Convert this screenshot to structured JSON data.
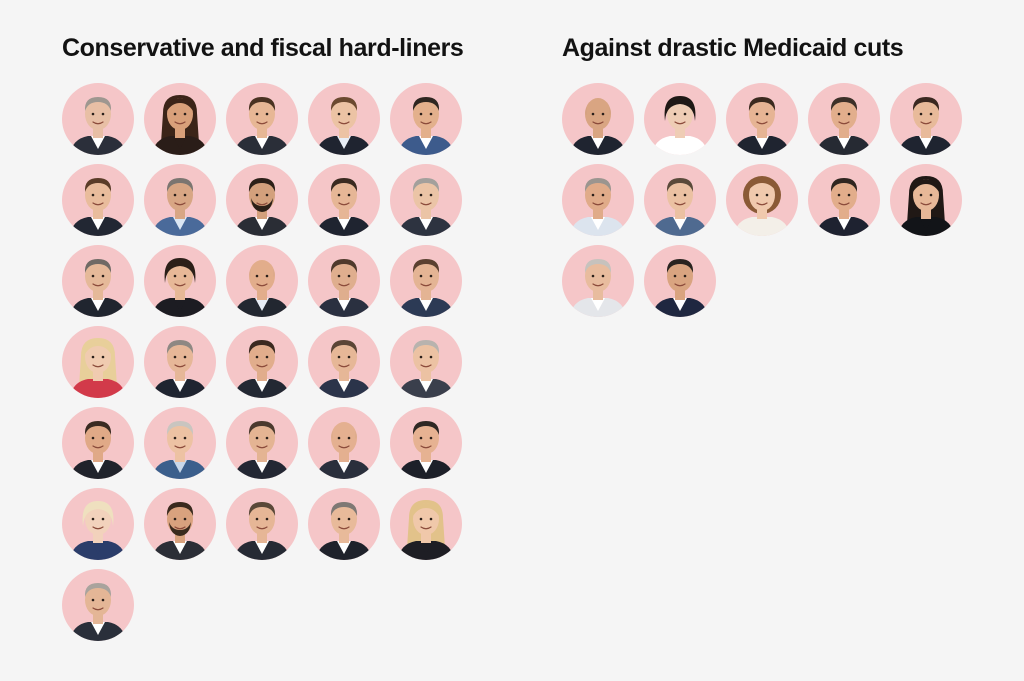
{
  "colors": {
    "background": "#f5f5f5",
    "portrait_circle": "#f5c6c8",
    "title_text": "#121212"
  },
  "groups": [
    {
      "title": "Conservative and fiscal hard-liners",
      "portraits": [
        {
          "skin": "#e8bfa5",
          "hair": "#9e9790",
          "hair_style": "short",
          "suit": "#2b2f3a",
          "shirt": "#ffffff"
        },
        {
          "skin": "#d9a07a",
          "hair": "#3b2418",
          "hair_style": "long",
          "suit": "#2a1d18",
          "shirt": "#2a1d18"
        },
        {
          "skin": "#e7b795",
          "hair": "#4a3322",
          "hair_style": "short",
          "suit": "#2a2e38",
          "shirt": "#ffffff"
        },
        {
          "skin": "#ecc3a4",
          "hair": "#6b4a30",
          "hair_style": "short",
          "suit": "#1f2430",
          "shirt": "#e8eef6"
        },
        {
          "skin": "#e3b08c",
          "hair": "#2e2620",
          "hair_style": "short",
          "suit": "#3d5b8c",
          "shirt": "#ffffff"
        },
        {
          "skin": "#e9bc9c",
          "hair": "#5a3c28",
          "hair_style": "short",
          "suit": "#222733",
          "shirt": "#ffffff"
        },
        {
          "skin": "#d8a684",
          "hair": "#7b7570",
          "hair_style": "short",
          "suit": "#4a6a9a",
          "shirt": "#dbe6f3"
        },
        {
          "skin": "#d3a07c",
          "hair": "#2c2018",
          "hair_style": "beard",
          "suit": "#2a2d35",
          "shirt": "#ffffff"
        },
        {
          "skin": "#e6b696",
          "hair": "#3a2a20",
          "hair_style": "short",
          "suit": "#1f2430",
          "shirt": "#ffffff"
        },
        {
          "skin": "#ebc4a6",
          "hair": "#a3a09c",
          "hair_style": "short",
          "suit": "#2d3340",
          "shirt": "#ffffff"
        },
        {
          "skin": "#e5b999",
          "hair": "#6f6a65",
          "hair_style": "short",
          "suit": "#20252f",
          "shirt": "#ffffff"
        },
        {
          "skin": "#e7b897",
          "hair": "#2b1f18",
          "hair_style": "bob",
          "suit": "#1c1c22",
          "shirt": "#1c1c22"
        },
        {
          "skin": "#e2ad8b",
          "hair": "#d8a88a",
          "hair_style": "bald",
          "suit": "#222730",
          "shirt": "#e8eef6"
        },
        {
          "skin": "#dfae8e",
          "hair": "#4f3a2c",
          "hair_style": "short",
          "suit": "#2a3040",
          "shirt": "#ffffff"
        },
        {
          "skin": "#e4b494",
          "hair": "#5a4030",
          "hair_style": "short",
          "suit": "#2c3a55",
          "shirt": "#ffffff"
        },
        {
          "skin": "#f0cbb0",
          "hair": "#e8cf9a",
          "hair_style": "long",
          "suit": "#d23a4a",
          "shirt": "#d23a4a"
        },
        {
          "skin": "#e6b798",
          "hair": "#8e8883",
          "hair_style": "short",
          "suit": "#1f2430",
          "shirt": "#ffffff"
        },
        {
          "skin": "#e1ad8c",
          "hair": "#3b2a20",
          "hair_style": "short",
          "suit": "#232833",
          "shirt": "#ffffff"
        },
        {
          "skin": "#e6b797",
          "hair": "#5b4536",
          "hair_style": "short",
          "suit": "#2b344a",
          "shirt": "#ffffff"
        },
        {
          "skin": "#ecc2a3",
          "hair": "#b8b3ae",
          "hair_style": "short",
          "suit": "#3a3f4c",
          "shirt": "#ffffff"
        },
        {
          "skin": "#e0a987",
          "hair": "#3a2b22",
          "hair_style": "short",
          "suit": "#20232b",
          "shirt": "#ffffff"
        },
        {
          "skin": "#edc2a3",
          "hair": "#c9c5c0",
          "hair_style": "short",
          "suit": "#3b5f8c",
          "shirt": "#c8d8ea"
        },
        {
          "skin": "#e4b493",
          "hair": "#4b3a2e",
          "hair_style": "short",
          "suit": "#232733",
          "shirt": "#ffffff"
        },
        {
          "skin": "#e4b090",
          "hair": "#d9a98a",
          "hair_style": "bald",
          "suit": "#2a2f3c",
          "shirt": "#ffffff"
        },
        {
          "skin": "#e6b292",
          "hair": "#2e2824",
          "hair_style": "short",
          "suit": "#1d2029",
          "shirt": "#ffffff"
        },
        {
          "skin": "#f2d2bc",
          "hair": "#efe0bf",
          "hair_style": "bob",
          "suit": "#2b3d6a",
          "shirt": "#2b3d6a"
        },
        {
          "skin": "#d9a27e",
          "hair": "#3a2a1e",
          "hair_style": "beard",
          "suit": "#2b2e36",
          "shirt": "#ffffff"
        },
        {
          "skin": "#e6b696",
          "hair": "#5a4838",
          "hair_style": "short",
          "suit": "#262a34",
          "shirt": "#ffffff"
        },
        {
          "skin": "#e8ba9a",
          "hair": "#7e7874",
          "hair_style": "short",
          "suit": "#1f222b",
          "shirt": "#ffffff"
        },
        {
          "skin": "#f0c8aa",
          "hair": "#e2c28a",
          "hair_style": "long",
          "suit": "#1e1e24",
          "shirt": "#1e1e24"
        },
        {
          "skin": "#e4b696",
          "hair": "#a9a39d",
          "hair_style": "short",
          "suit": "#2a2f3a",
          "shirt": "#ffffff"
        }
      ]
    },
    {
      "title": "Against drastic Medicaid cuts",
      "portraits": [
        {
          "skin": "#d9a582",
          "hair": "#d1a07f",
          "hair_style": "bald",
          "suit": "#1f2430",
          "shirt": "#ffffff"
        },
        {
          "skin": "#efcdb5",
          "hair": "#1f1815",
          "hair_style": "bob",
          "suit": "#ffffff",
          "shirt": "#ffffff"
        },
        {
          "skin": "#e6b494",
          "hair": "#3b2a1f",
          "hair_style": "short",
          "suit": "#1f2430",
          "shirt": "#ffffff"
        },
        {
          "skin": "#e2ae8c",
          "hair": "#3c3028",
          "hair_style": "short",
          "suit": "#262a33",
          "shirt": "#ffffff"
        },
        {
          "skin": "#e8ba9a",
          "hair": "#3a2820",
          "hair_style": "short",
          "suit": "#1f2430",
          "shirt": "#ffffff"
        },
        {
          "skin": "#e0ab89",
          "hair": "#9b958f",
          "hair_style": "short",
          "suit": "#dce4ee",
          "shirt": "#ffffff"
        },
        {
          "skin": "#ebc1a2",
          "hair": "#5a4a3a",
          "hair_style": "short",
          "suit": "#4f6a90",
          "shirt": "#ffffff"
        },
        {
          "skin": "#f0c9ad",
          "hair": "#8a5a36",
          "hair_style": "curly",
          "suit": "#f3efe8",
          "shirt": "#f3efe8"
        },
        {
          "skin": "#e2ad8b",
          "hair": "#2f2620",
          "hair_style": "short",
          "suit": "#1e2230",
          "shirt": "#ffffff"
        },
        {
          "skin": "#e7b898",
          "hair": "#201815",
          "hair_style": "long",
          "suit": "#121418",
          "shirt": "#121418"
        },
        {
          "skin": "#e8bc9e",
          "hair": "#c6c2bd",
          "hair_style": "short",
          "suit": "#e4e6ea",
          "shirt": "#ffffff"
        },
        {
          "skin": "#d9a480",
          "hair": "#2a2420",
          "hair_style": "short",
          "suit": "#1f2740",
          "shirt": "#ffffff"
        }
      ]
    }
  ]
}
